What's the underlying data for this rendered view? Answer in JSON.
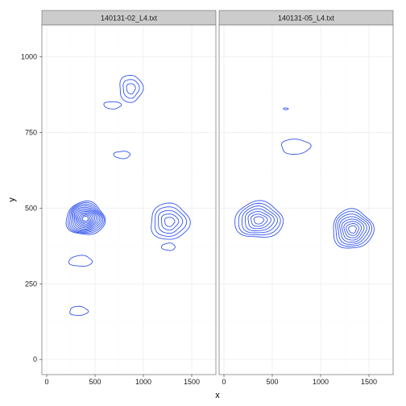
{
  "chart_data": {
    "type": "contour",
    "xlabel": "x",
    "ylabel": "y",
    "xlim": [
      -50,
      1750
    ],
    "ylim": [
      -50,
      1105
    ],
    "x_ticks": [
      0,
      500,
      1000,
      1500
    ],
    "y_ticks": [
      0,
      250,
      500,
      750,
      1000
    ],
    "grid": true,
    "line_color": "#3355ee",
    "panels": [
      {
        "title": "140131-02_L4.txt",
        "clusters": [
          {
            "cx": 400,
            "cy": 465,
            "rx": 200,
            "ry": 55,
            "levels": 12
          },
          {
            "cx": 1270,
            "cy": 455,
            "rx": 200,
            "ry": 60,
            "levels": 5
          },
          {
            "cx": 870,
            "cy": 895,
            "rx": 120,
            "ry": 45,
            "levels": 3
          },
          {
            "cx": 680,
            "cy": 840,
            "rx": 90,
            "ry": 12,
            "levels": 1
          },
          {
            "cx": 780,
            "cy": 676,
            "rx": 85,
            "ry": 12,
            "levels": 1
          },
          {
            "cx": 1260,
            "cy": 372,
            "rx": 70,
            "ry": 12,
            "levels": 1
          },
          {
            "cx": 350,
            "cy": 325,
            "rx": 120,
            "ry": 18,
            "levels": 1
          },
          {
            "cx": 330,
            "cy": 160,
            "rx": 95,
            "ry": 15,
            "levels": 1
          }
        ]
      },
      {
        "title": "140131-05_L4.txt",
        "clusters": [
          {
            "cx": 360,
            "cy": 460,
            "rx": 250,
            "ry": 60,
            "levels": 7
          },
          {
            "cx": 1330,
            "cy": 430,
            "rx": 210,
            "ry": 65,
            "levels": 8
          },
          {
            "cx": 740,
            "cy": 703,
            "rx": 150,
            "ry": 25,
            "levels": 1
          },
          {
            "cx": 640,
            "cy": 828,
            "rx": 25,
            "ry": 3,
            "levels": 1
          }
        ]
      }
    ]
  }
}
